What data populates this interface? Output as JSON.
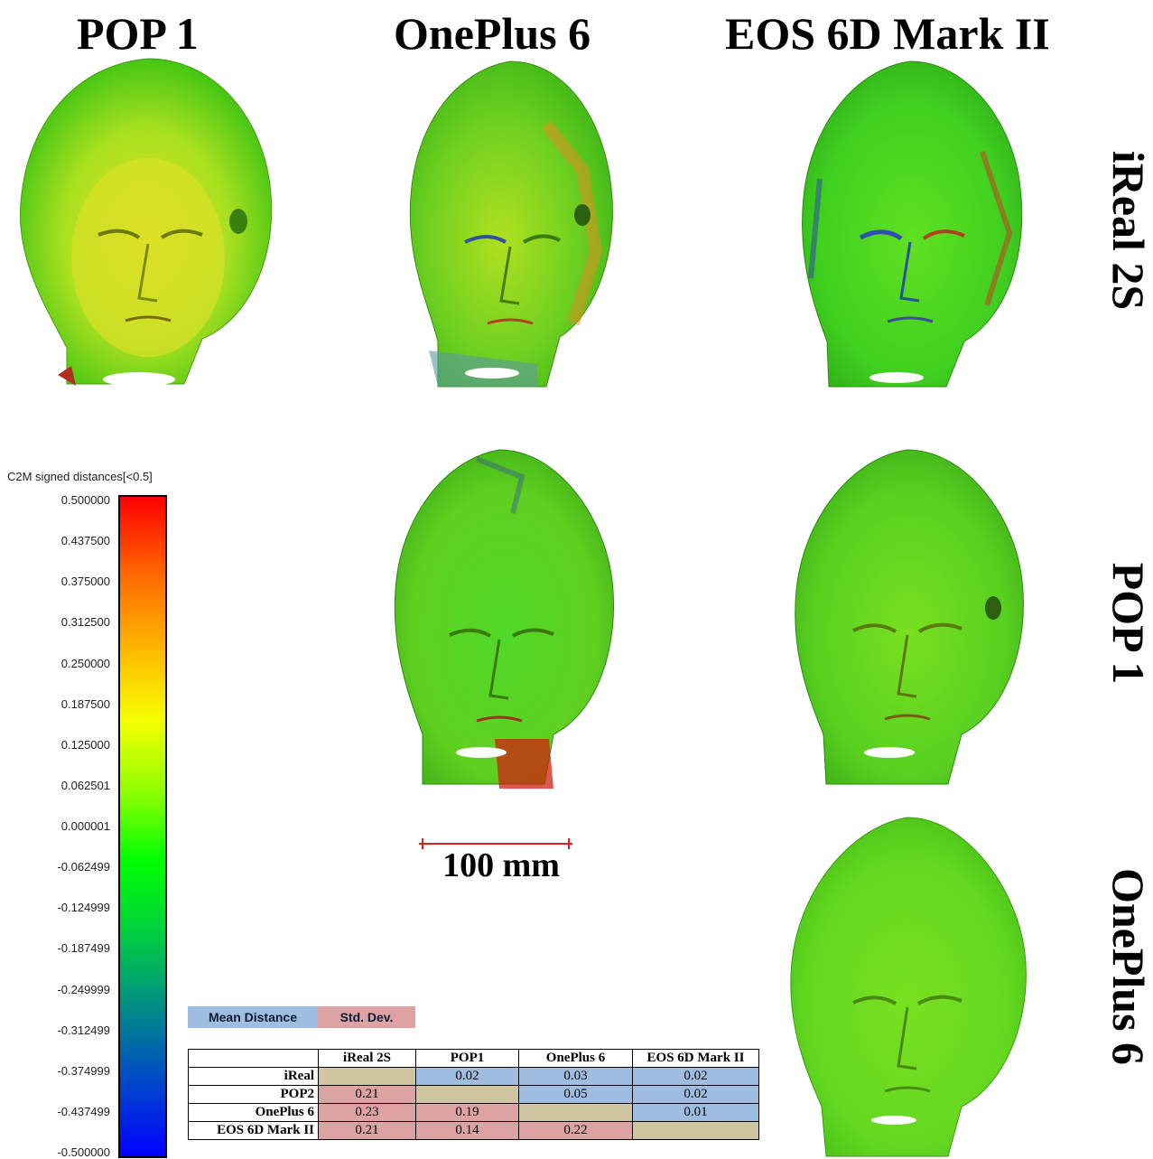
{
  "columns": [
    "POP 1",
    "OnePlus 6",
    "EOS 6D Mark II"
  ],
  "rows": [
    "iReal 2S",
    "POP 1",
    "OnePlus 6"
  ],
  "colorbar": {
    "title": "C2M signed distances[<0.5]",
    "ticks": [
      "0.500000",
      "0.437500",
      "0.375000",
      "0.312500",
      "0.250000",
      "0.187500",
      "0.125000",
      "0.062501",
      "0.000001",
      "-0.062499",
      "-0.124999",
      "-0.187499",
      "-0.249999",
      "-0.312499",
      "-0.374999",
      "-0.437499",
      "-0.500000"
    ],
    "colors": [
      "#ff0000",
      "#ffc400",
      "#00ff00",
      "#0000ff"
    ]
  },
  "scale": {
    "label": "100 mm",
    "color": "#e02020"
  },
  "legend": {
    "mean": "Mean Distance",
    "std": "Std. Dev.",
    "mean_color": "#9fbde0",
    "std_color": "#dda3a3"
  },
  "table": {
    "headers": [
      "",
      "iReal 2S",
      "POP1",
      "OnePlus 6",
      "EOS 6D Mark II"
    ],
    "rows": [
      {
        "label": "iReal",
        "cells": [
          "",
          "0.02",
          "0.03",
          "0.02"
        ]
      },
      {
        "label": "POP2",
        "cells": [
          "0.21",
          "",
          "0.05",
          "0.02"
        ]
      },
      {
        "label": "OnePlus 6",
        "cells": [
          "0.23",
          "0.19",
          "",
          "0.01"
        ]
      },
      {
        "label": "EOS 6D Mark II",
        "cells": [
          "0.21",
          "0.14",
          "0.22",
          ""
        ]
      }
    ]
  }
}
